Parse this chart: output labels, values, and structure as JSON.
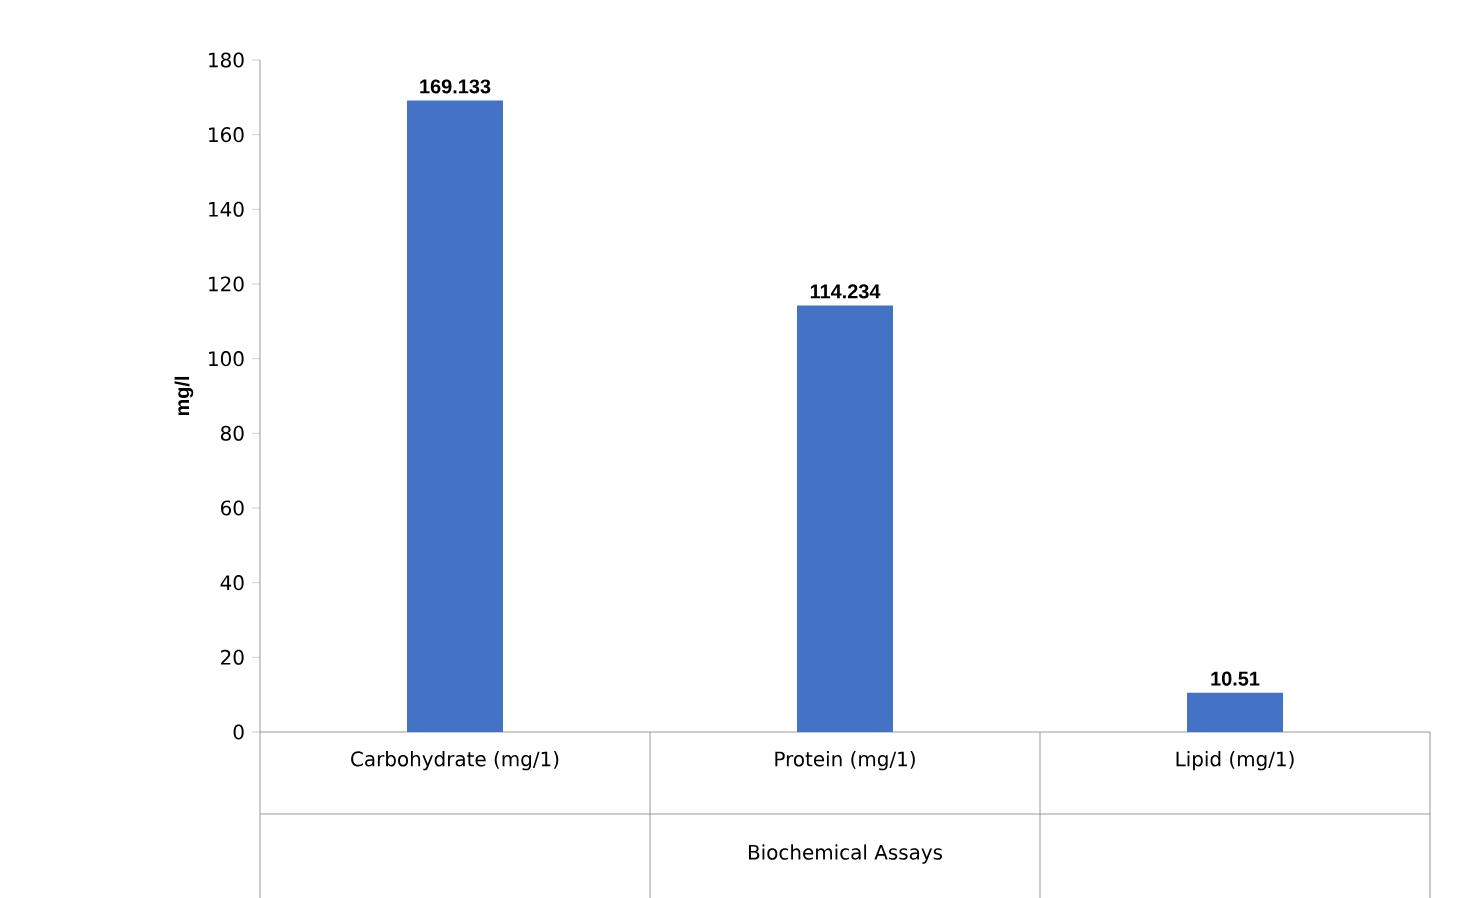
{
  "chart_data": {
    "type": "bar",
    "categories": [
      "Carbohydrate (mg/1)",
      "Protein (mg/1)",
      "Lipid (mg/1)"
    ],
    "values": [
      169.133,
      114.234,
      10.51
    ],
    "color": "#4472c4",
    "data_labels": true,
    "ylabel": "mg/l",
    "xlabel": "Biochemical Assays",
    "ylim": [
      0,
      180
    ],
    "yticks": [
      0,
      20,
      40,
      60,
      80,
      100,
      120,
      140,
      160,
      180
    ],
    "grid": false
  }
}
